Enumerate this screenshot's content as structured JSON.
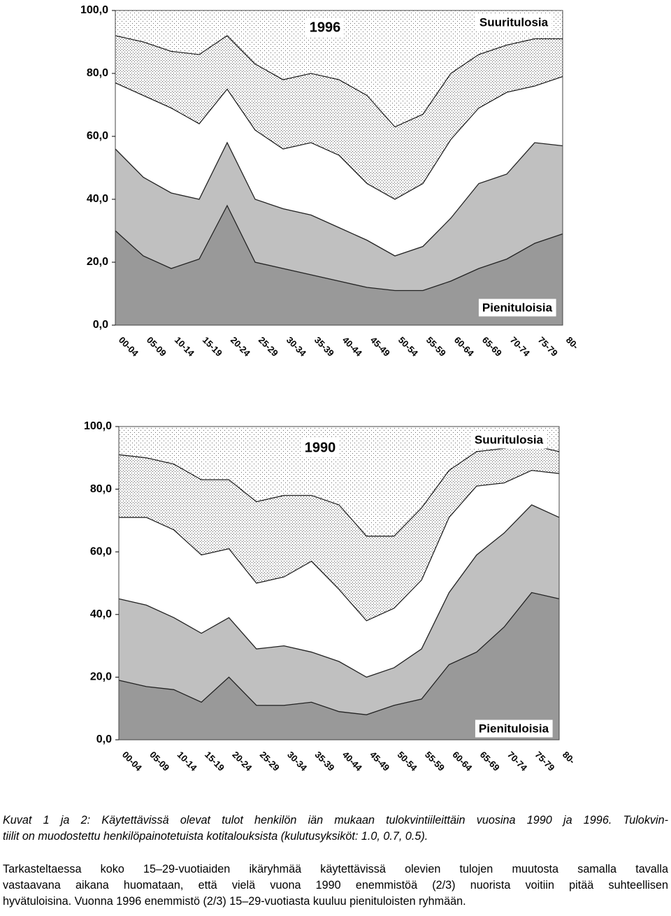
{
  "chart_data": [
    {
      "type": "area",
      "stacked": true,
      "title": "1996",
      "annotations": [
        "Suuritulosia",
        "Pienituloisia"
      ],
      "categories": [
        "00-04",
        "05-09",
        "10-14",
        "15-19",
        "20-24",
        "25-29",
        "30-34",
        "35-39",
        "40-44",
        "45-49",
        "50-54",
        "55-59",
        "60-64",
        "65-69",
        "70-74",
        "75-79",
        "80-"
      ],
      "ylim": [
        0,
        100
      ],
      "yticks": [
        {
          "value": 0,
          "label": "0,0"
        },
        {
          "value": 20,
          "label": "20,0"
        },
        {
          "value": 40,
          "label": "40,0"
        },
        {
          "value": 60,
          "label": "60,0"
        },
        {
          "value": 80,
          "label": "80,0"
        },
        {
          "value": 100,
          "label": "100,0"
        }
      ],
      "series": [
        {
          "color": "#999999",
          "fill": "solid",
          "values": [
            30,
            22,
            18,
            21,
            38,
            20,
            18,
            16,
            14,
            12,
            11,
            11,
            14,
            18,
            21,
            26,
            29
          ]
        },
        {
          "color": "#c0c0c0",
          "fill": "solid",
          "values": [
            26,
            25,
            24,
            19,
            20,
            20,
            19,
            19,
            17,
            15,
            11,
            14,
            20,
            27,
            27,
            32,
            28
          ]
        },
        {
          "color": "#ffffff",
          "fill": "solid",
          "values": [
            21,
            26,
            27,
            24,
            17,
            22,
            19,
            23,
            23,
            18,
            18,
            20,
            25,
            24,
            26,
            18,
            22
          ]
        },
        {
          "color": "#ffffff",
          "fill": "dots-dense",
          "values": [
            15,
            17,
            18,
            22,
            17,
            21,
            22,
            22,
            24,
            28,
            23,
            22,
            21,
            17,
            15,
            15,
            12
          ]
        },
        {
          "color": "#ffffff",
          "fill": "dots-sparse",
          "values": [
            8,
            10,
            13,
            14,
            8,
            17,
            22,
            20,
            22,
            27,
            37,
            33,
            20,
            14,
            11,
            9,
            9
          ]
        }
      ]
    },
    {
      "type": "area",
      "stacked": true,
      "title": "1990",
      "annotations": [
        "Suuritulosia",
        "Pienituloisia"
      ],
      "categories": [
        "00-04",
        "05-09",
        "10-14",
        "15-19",
        "20-24",
        "25-29",
        "30-34",
        "35-39",
        "40-44",
        "45-49",
        "50-54",
        "55-59",
        "60-64",
        "65-69",
        "70-74",
        "75-79",
        "80-"
      ],
      "ylim": [
        0,
        100
      ],
      "yticks": [
        {
          "value": 0,
          "label": "0,0"
        },
        {
          "value": 20,
          "label": "20,0"
        },
        {
          "value": 40,
          "label": "40,0"
        },
        {
          "value": 60,
          "label": "60,0"
        },
        {
          "value": 80,
          "label": "80,0"
        },
        {
          "value": 100,
          "label": "100,0"
        }
      ],
      "series": [
        {
          "color": "#999999",
          "fill": "solid",
          "values": [
            19,
            17,
            16,
            12,
            20,
            11,
            11,
            12,
            9,
            8,
            11,
            13,
            24,
            28,
            36,
            47,
            45
          ]
        },
        {
          "color": "#c0c0c0",
          "fill": "solid",
          "values": [
            26,
            26,
            23,
            22,
            19,
            18,
            19,
            16,
            16,
            12,
            12,
            16,
            23,
            31,
            30,
            28,
            26
          ]
        },
        {
          "color": "#ffffff",
          "fill": "solid",
          "values": [
            26,
            28,
            28,
            25,
            22,
            21,
            22,
            29,
            23,
            18,
            19,
            22,
            24,
            22,
            16,
            11,
            14
          ]
        },
        {
          "color": "#ffffff",
          "fill": "dots-dense",
          "values": [
            20,
            19,
            21,
            24,
            22,
            26,
            26,
            21,
            27,
            27,
            23,
            23,
            15,
            11,
            11,
            8,
            7
          ]
        },
        {
          "color": "#ffffff",
          "fill": "dots-sparse",
          "values": [
            9,
            10,
            12,
            17,
            17,
            24,
            22,
            22,
            25,
            35,
            35,
            26,
            14,
            8,
            7,
            6,
            8
          ]
        }
      ]
    }
  ],
  "caption": [
    "Kuvat 1 ja 2: Käytettävissä olevat tulot henkilön iän mukaan tulokvintiileittäin vuosina 1990 ja 1996. Tulokvin-",
    "tiilit on muodostettu henkilöpainotetuista kotitalouksista (kulutusyksiköt: 1.0, 0.7, 0.5)."
  ],
  "paragraph": [
    "Tarkasteltaessa koko 15–29-vuotiaiden ikäryhmää käytettävissä olevien tulojen muutosta samalla tavalla",
    "vastaavana aikana huomataan, että vielä vuona 1990 enemmistöä (2/3) nuorista voitiin pitää suhteellisen",
    "hyvätuloisina. Vuonna 1996 enemmistö (2/3) 15–29-vuotiasta kuuluu pienituloisten ryhmään."
  ]
}
